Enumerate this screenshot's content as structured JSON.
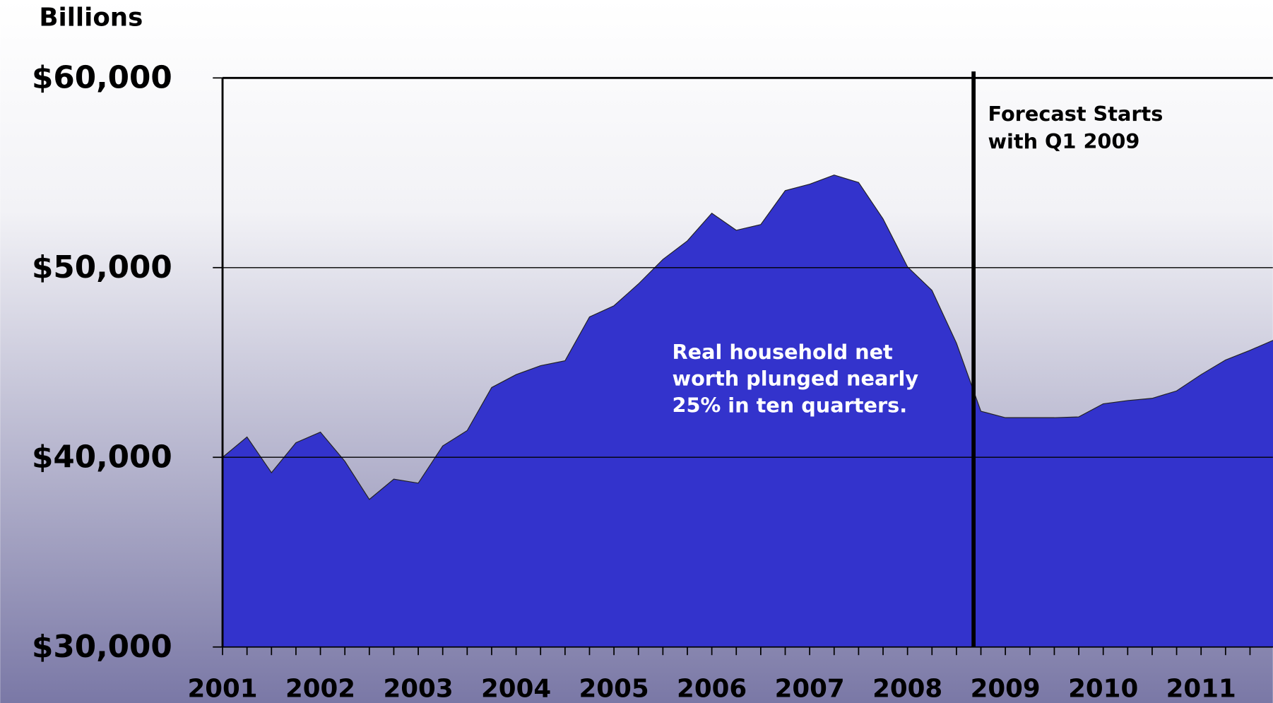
{
  "chart_data": {
    "type": "area",
    "y_unit_label": "Billions",
    "categories": [
      "2001",
      null,
      null,
      null,
      "2002",
      null,
      null,
      null,
      "2003",
      null,
      null,
      null,
      "2004",
      null,
      null,
      null,
      "2005",
      null,
      null,
      null,
      "2006",
      null,
      null,
      null,
      "2007",
      null,
      null,
      null,
      "2008",
      null,
      null,
      null,
      "2009",
      null,
      null,
      null,
      "2010",
      null,
      null,
      null,
      "2011",
      null,
      null,
      null
    ],
    "values": [
      40000,
      41070,
      39190,
      40770,
      41330,
      39790,
      37780,
      38850,
      38640,
      40600,
      41410,
      43680,
      44360,
      44830,
      45090,
      47400,
      47990,
      49140,
      50430,
      51410,
      52870,
      51970,
      52270,
      54060,
      54400,
      54880,
      54490,
      52570,
      50040,
      48800,
      46020,
      42430,
      42090,
      42090,
      42090,
      42130,
      42820,
      42990,
      43110,
      43500,
      44360,
      45130,
      45640,
      46200
    ],
    "color": "#3333cc",
    "ylim": [
      30000,
      60000
    ],
    "yticks": [
      {
        "value": 30000,
        "label": "$30,000"
      },
      {
        "value": 40000,
        "label": "$40,000"
      },
      {
        "value": 50000,
        "label": "$50,000"
      },
      {
        "value": 60000,
        "label": "$60,000"
      }
    ],
    "grid": true,
    "annotation": [
      "Real household net",
      "worth plunged nearly",
      "25% in ten quarters."
    ],
    "forecast_label": [
      "Forecast Starts",
      "with Q1 2009"
    ]
  }
}
